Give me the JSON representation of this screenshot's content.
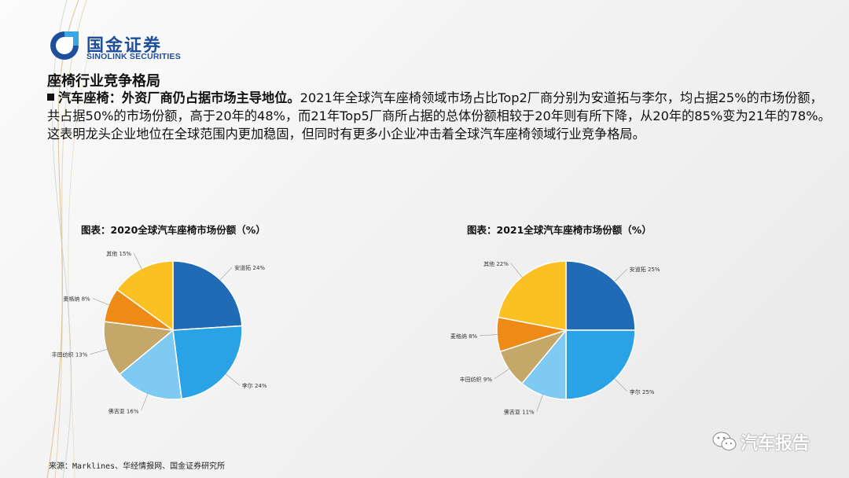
{
  "logo": {
    "name_cn": "国金证券",
    "name_en": "SINOLINK SECURITIES"
  },
  "section_title": "座椅行业竞争格局",
  "paragraph": {
    "lead": "汽车座椅：外资厂商仍占据市场主导地位。",
    "body": "2021年全球汽车座椅领域市场占比Top2厂商分别为安道拓与李尔，均占据25%的市场份额，共占据50%的市场份额，高于20年的48%，而21年Top5厂商所占据的总体份额相较于20年则有所下降，从20年的85%变为21年的78%。这表明龙头企业地位在全球范围内更加稳固，但同时有更多小企业冲击着全球汽车座椅领域行业竞争格局。"
  },
  "chart_data": [
    {
      "type": "pie",
      "title": "图表：2020全球汽车座椅市场份额（%）",
      "slices": [
        {
          "label": "安道拓",
          "value": 24,
          "color": "#1f6bb5"
        },
        {
          "label": "李尔",
          "value": 24,
          "color": "#29a3e6"
        },
        {
          "label": "佛吉亚",
          "value": 16,
          "color": "#7fcaf2"
        },
        {
          "label": "丰田纺织",
          "value": 13,
          "color": "#c5a76a"
        },
        {
          "label": "麦格纳",
          "value": 8,
          "color": "#ee8a16"
        },
        {
          "label": "其他",
          "value": 15,
          "color": "#fbc123"
        }
      ],
      "label_text": [
        "安道拓 24%",
        "李尔 24%",
        "佛吉亚 16%",
        "丰田纺织 13%",
        "麦格纳 8%",
        "其他 15%"
      ]
    },
    {
      "type": "pie",
      "title": "图表：2021全球汽车座椅市场份额（%）",
      "slices": [
        {
          "label": "安道拓",
          "value": 25,
          "color": "#1f6bb5"
        },
        {
          "label": "李尔",
          "value": 25,
          "color": "#29a3e6"
        },
        {
          "label": "佛吉亚",
          "value": 11,
          "color": "#7fcaf2"
        },
        {
          "label": "丰田纺织",
          "value": 9,
          "color": "#c5a76a"
        },
        {
          "label": "麦格纳",
          "value": 8,
          "color": "#ee8a16"
        },
        {
          "label": "其他",
          "value": 22,
          "color": "#fbc123"
        }
      ],
      "label_text": [
        "安道拓 25%",
        "李尔 25%",
        "佛吉亚 11%",
        "丰田纺织 9%",
        "麦格纳 8%",
        "其他 22%"
      ]
    }
  ],
  "source": "来源：Marklines、华经情报网、国金证券研究所",
  "watermark": "汽车报告",
  "colors": {
    "brand_blue": "#1f4e9a",
    "deco_gold": "#d6b779"
  }
}
